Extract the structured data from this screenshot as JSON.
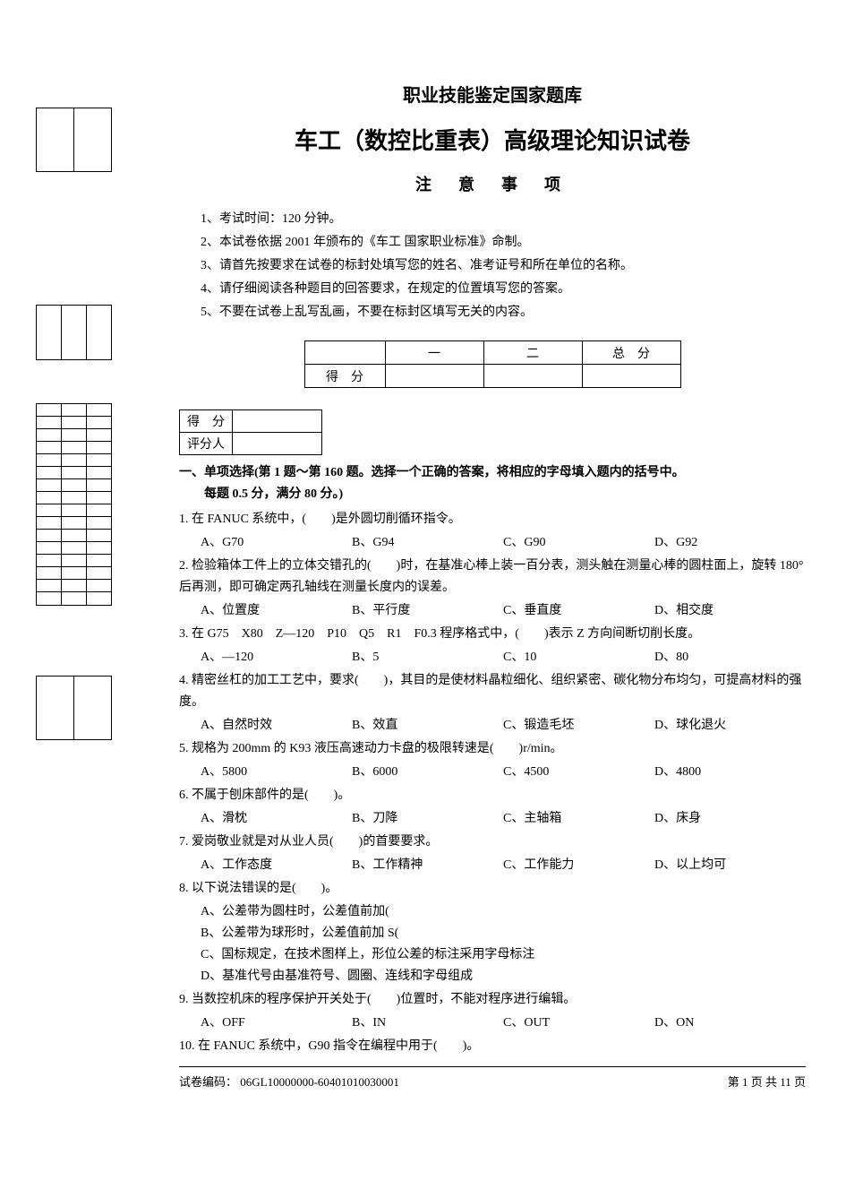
{
  "header": {
    "line1": "职业技能鉴定国家题库",
    "line2": "车工（数控比重表）高级理论知识试卷",
    "line3": "注意事项"
  },
  "notes": [
    "1、考试时间：120 分钟。",
    "2、本试卷依据 2001 年颁布的《车工 国家职业标准》命制。",
    "3、请首先按要求在试卷的标封处填写您的姓名、准考证号和所在单位的名称。",
    "4、请仔细阅读各种题目的回答要求，在规定的位置填写您的答案。",
    "5、不要在试卷上乱写乱画，不要在标封区填写无关的内容。"
  ],
  "score_table": {
    "col_blank": " ",
    "cols": [
      "一",
      "二",
      "总　分"
    ],
    "row_label": "得　分"
  },
  "small_table": {
    "r1": "得　分",
    "r2": "评分人"
  },
  "section1": {
    "title": "一、单项选择(第 1 题～第 160 题。选择一个正确的答案，将相应的字母填入题内的括号中。",
    "title2": "每题 0.5 分，满分 80 分。)"
  },
  "questions": [
    {
      "num": "1.",
      "stem": "在 FANUC 系统中，(　　)是外圆切削循环指令。",
      "opts": [
        "A、G70",
        "B、G94",
        "C、G90",
        "D、G92"
      ],
      "cols": 4
    },
    {
      "num": "2.",
      "stem": "检验箱体工件上的立体交错孔的(　　)时，在基准心棒上装一百分表，测头触在测量心棒的圆柱面上，旋转 180°后再测，即可确定两孔轴线在测量长度内的误差。",
      "opts": [
        "A、位置度",
        "B、平行度",
        "C、垂直度",
        "D、相交度"
      ],
      "cols": 4
    },
    {
      "num": "3.",
      "stem": "在 G75　X80　Z—120　P10　Q5　R1　F0.3 程序格式中，(　　)表示 Z 方向间断切削长度。",
      "opts": [
        "A、—120",
        "B、5",
        "C、10",
        "D、80"
      ],
      "cols": 4
    },
    {
      "num": "4.",
      "stem": "精密丝杠的加工工艺中，要求(　　)，其目的是使材料晶粒细化、组织紧密、碳化物分布均匀，可提高材料的强度。",
      "opts": [
        "A、自然时效",
        "B、效直",
        "C、锻造毛坯",
        "D、球化退火"
      ],
      "cols": 4
    },
    {
      "num": "5.",
      "stem": "规格为 200mm 的 K93 液压高速动力卡盘的极限转速是(　　)r/min。",
      "opts": [
        "A、5800",
        "B、6000",
        "C、4500",
        "D、4800"
      ],
      "cols": 4
    },
    {
      "num": "6.",
      "stem": "不属于刨床部件的是(　　)。",
      "opts": [
        "A、滑枕",
        "B、刀降",
        "C、主轴箱",
        "D、床身"
      ],
      "cols": 4
    },
    {
      "num": "7.",
      "stem": "爱岗敬业就是对从业人员(　　)的首要要求。",
      "opts": [
        "A、工作态度",
        "B、工作精神",
        "C、工作能力",
        "D、以上均可"
      ],
      "cols": 4
    },
    {
      "num": "8.",
      "stem": "以下说法错误的是(　　)。",
      "opts": [
        "A、公差带为圆柱时，公差值前加(",
        "B、公差带为球形时，公差值前加 S(",
        "C、国标规定，在技术图样上，形位公差的标注采用字母标注",
        "D、基准代号由基准符号、圆圈、连线和字母组成"
      ],
      "cols": 1
    },
    {
      "num": "9.",
      "stem": "当数控机床的程序保护开关处于(　　)位置时，不能对程序进行编辑。",
      "opts": [
        "A、OFF",
        "B、IN",
        "C、OUT",
        "D、ON"
      ],
      "cols": 4
    },
    {
      "num": "10.",
      "stem": "在 FANUC 系统中，G90 指令在编程中用于(　　)。",
      "opts": [],
      "cols": 4
    }
  ],
  "footer": {
    "left": "试卷编码： 06GL10000000-60401010030001",
    "right": "第 1 页 共 11 页"
  },
  "colors": {
    "text": "#000000",
    "background": "#ffffff",
    "border": "#000000"
  }
}
